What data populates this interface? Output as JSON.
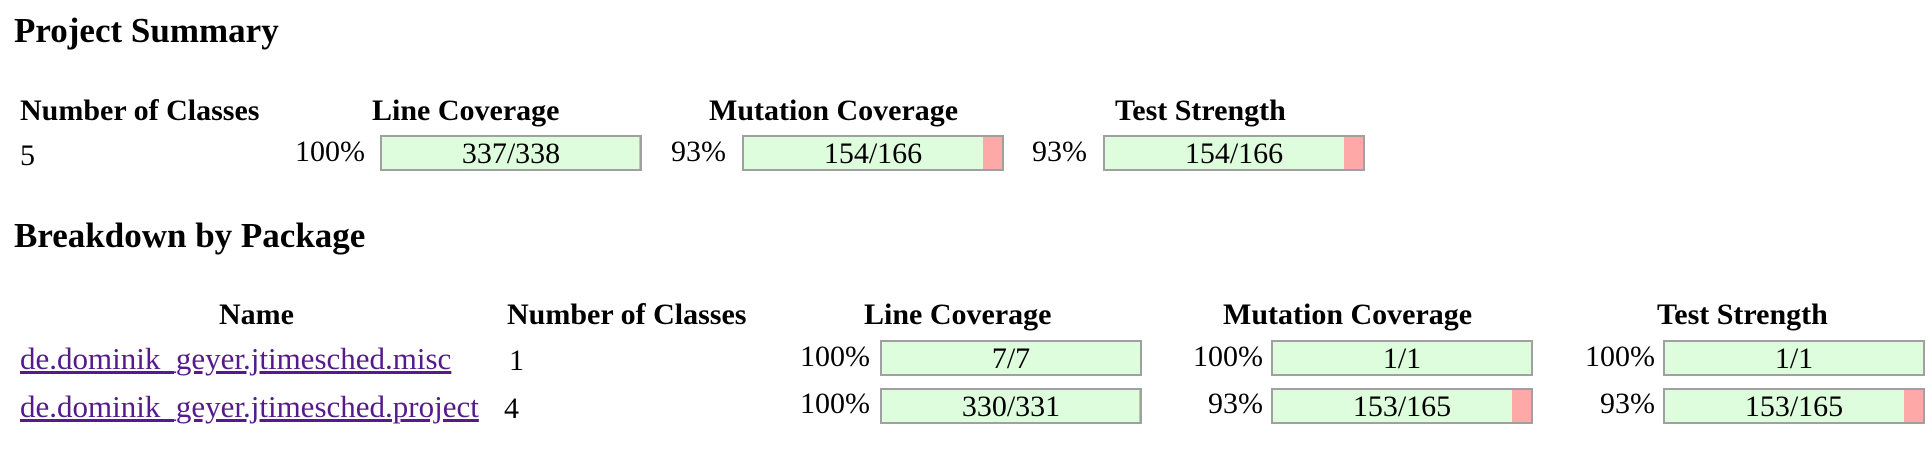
{
  "summary": {
    "title": "Project Summary",
    "headers": {
      "classes": "Number of Classes",
      "line": "Line Coverage",
      "mutation": "Mutation Coverage",
      "strength": "Test Strength"
    },
    "classes": "5",
    "line": {
      "pct": "100%",
      "label": "337/338",
      "fraction": 0.997
    },
    "mutation": {
      "pct": "93%",
      "label": "154/166",
      "fraction": 0.928
    },
    "strength": {
      "pct": "93%",
      "label": "154/166",
      "fraction": 0.928
    }
  },
  "breakdown": {
    "title": "Breakdown by Package",
    "headers": {
      "name": "Name",
      "classes": "Number of Classes",
      "line": "Line Coverage",
      "mutation": "Mutation Coverage",
      "strength": "Test Strength"
    },
    "rows": [
      {
        "name": "de.dominik_geyer.jtimesched.misc",
        "classes": "1",
        "line": {
          "pct": "100%",
          "label": "7/7",
          "fraction": 1.0
        },
        "mutation": {
          "pct": "100%",
          "label": "1/1",
          "fraction": 1.0
        },
        "strength": {
          "pct": "100%",
          "label": "1/1",
          "fraction": 1.0
        }
      },
      {
        "name": "de.dominik_geyer.jtimesched.project",
        "classes": "4",
        "line": {
          "pct": "100%",
          "label": "330/331",
          "fraction": 0.997
        },
        "mutation": {
          "pct": "93%",
          "label": "153/165",
          "fraction": 0.927
        },
        "strength": {
          "pct": "93%",
          "label": "153/165",
          "fraction": 0.927
        }
      }
    ]
  },
  "colors": {
    "covered": "#ddfddd",
    "uncovered": "#ffa8a8",
    "link": "#551a8b"
  }
}
